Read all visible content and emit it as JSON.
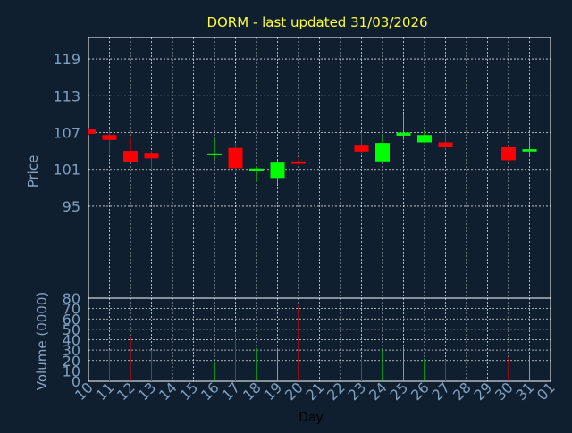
{
  "title": "DORM - last updated 31/03/2026",
  "colors": {
    "background": "#0f1f30",
    "title": "#ffff33",
    "axis_text": "#7f9fbf",
    "axis_title": "#8aa4bf",
    "frame": "#ffffff",
    "grid": "#ffffff",
    "up": "#00ff00",
    "down": "#ff0000"
  },
  "chart_data": [
    {
      "type": "candlestick",
      "ylabel": "Price",
      "ylim": [
        80,
        122.5
      ],
      "yticks": [
        "119",
        "113",
        "107",
        "101",
        "95",
        "80"
      ],
      "ytick_values": [
        119,
        113,
        107,
        101,
        95,
        80
      ],
      "grid": true,
      "candles": [
        {
          "day": "10",
          "open": 107.5,
          "high": 107.7,
          "low": 106.6,
          "close": 106.8
        },
        {
          "day": "11",
          "open": 106.6,
          "high": 107.6,
          "low": 103.5,
          "close": 105.8
        },
        {
          "day": "12",
          "open": 104.0,
          "high": 106.4,
          "low": 102.1,
          "close": 102.2
        },
        {
          "day": "13",
          "open": 103.7,
          "high": 104.0,
          "low": 101.0,
          "close": 102.8
        },
        {
          "day": "16",
          "open": 103.3,
          "high": 106.0,
          "low": 102.7,
          "close": 103.6
        },
        {
          "day": "17",
          "open": 104.5,
          "high": 105.3,
          "low": 100.6,
          "close": 101.2
        },
        {
          "day": "18",
          "open": 100.8,
          "high": 101.5,
          "low": 99.0,
          "close": 101.0
        },
        {
          "day": "19",
          "open": 99.6,
          "high": 102.4,
          "low": 98.6,
          "close": 102.1
        },
        {
          "day": "20",
          "open": 102.3,
          "high": 102.7,
          "low": 101.7,
          "close": 101.9
        },
        {
          "day": "23",
          "open": 105.0,
          "high": 107.0,
          "low": 103.6,
          "close": 103.9
        },
        {
          "day": "24",
          "open": 102.3,
          "high": 106.5,
          "low": 102.3,
          "close": 105.3
        },
        {
          "day": "25",
          "open": 106.5,
          "high": 110.0,
          "low": 105.8,
          "close": 107.0
        },
        {
          "day": "26",
          "open": 105.4,
          "high": 107.3,
          "low": 105.3,
          "close": 106.6
        },
        {
          "day": "27",
          "open": 105.4,
          "high": 107.0,
          "low": 104.2,
          "close": 104.6
        },
        {
          "day": "30",
          "open": 104.6,
          "high": 104.8,
          "low": 102.2,
          "close": 102.5
        },
        {
          "day": "31",
          "open": 103.9,
          "high": 106.2,
          "low": 103.0,
          "close": 104.3
        }
      ]
    },
    {
      "type": "bar",
      "ylabel": "Volume (0000)",
      "xlabel": "Day",
      "ylim": [
        0,
        80
      ],
      "yticks": [
        "70",
        "60",
        "50",
        "40",
        "30",
        "20",
        "10",
        "0"
      ],
      "ytick_values": [
        70,
        60,
        50,
        40,
        30,
        20,
        10,
        0
      ],
      "grid": true,
      "categories": [
        "10",
        "11",
        "12",
        "13",
        "14",
        "15",
        "16",
        "17",
        "18",
        "19",
        "20",
        "21",
        "22",
        "23",
        "24",
        "25",
        "26",
        "27",
        "28",
        "29",
        "30",
        "31",
        "01"
      ],
      "values": [
        {
          "day": "11",
          "value": 30,
          "direction": "down"
        },
        {
          "day": "12",
          "value": 42,
          "direction": "down"
        },
        {
          "day": "13",
          "value": 30,
          "direction": "down"
        },
        {
          "day": "16",
          "value": 19,
          "direction": "up"
        },
        {
          "day": "17",
          "value": 46,
          "direction": "down"
        },
        {
          "day": "18",
          "value": 32,
          "direction": "up"
        },
        {
          "day": "19",
          "value": 32,
          "direction": "up"
        },
        {
          "day": "20",
          "value": 73,
          "direction": "down"
        },
        {
          "day": "23",
          "value": 23,
          "direction": "down"
        },
        {
          "day": "24",
          "value": 31,
          "direction": "up"
        },
        {
          "day": "25",
          "value": 33,
          "direction": "up"
        },
        {
          "day": "26",
          "value": 22,
          "direction": "up"
        },
        {
          "day": "27",
          "value": 21,
          "direction": "down"
        },
        {
          "day": "30",
          "value": 23,
          "direction": "down"
        },
        {
          "day": "31",
          "value": 25,
          "direction": "up"
        }
      ]
    }
  ]
}
